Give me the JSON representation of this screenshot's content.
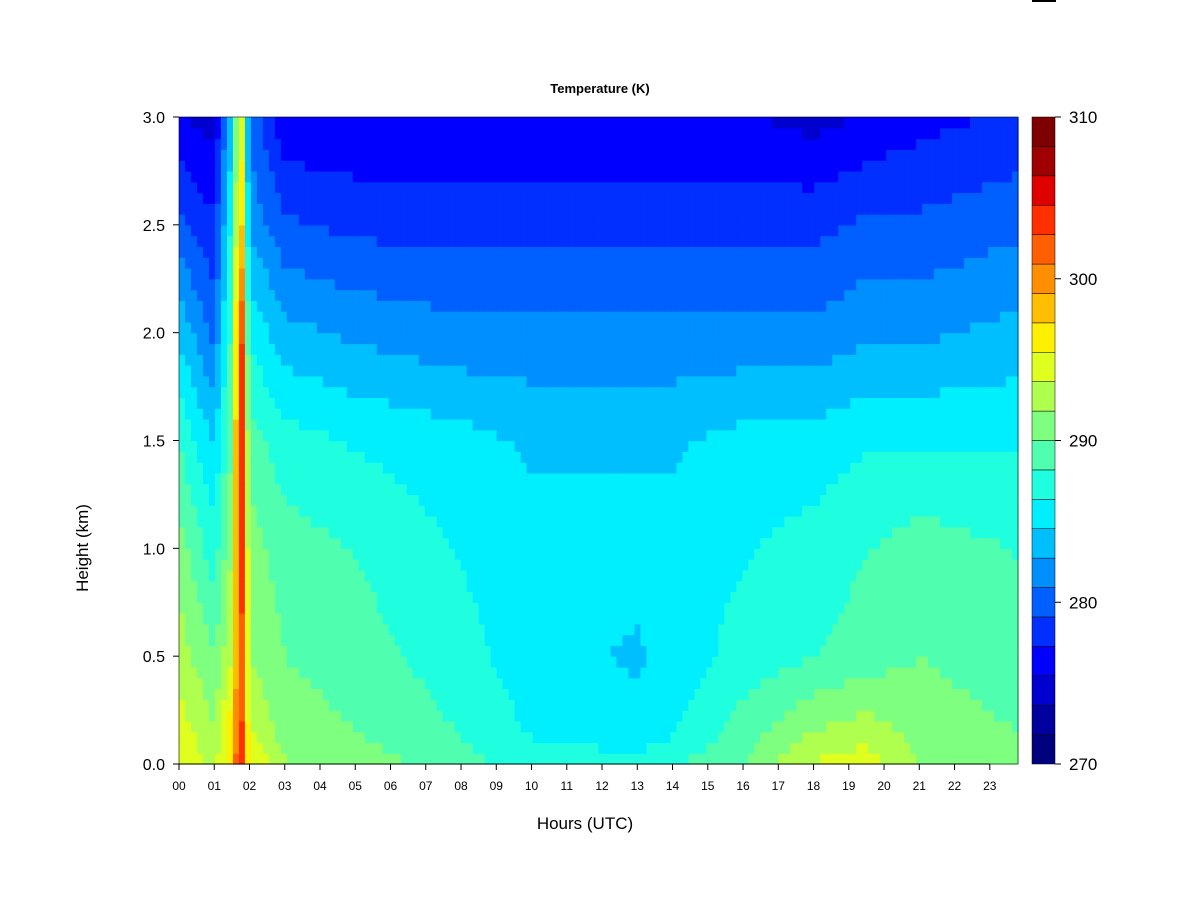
{
  "chart_data": {
    "type": "heatmap",
    "title": "Temperature (K)",
    "xlabel": "Hours (UTC)",
    "ylabel": "Height (km)",
    "x_ticks": [
      "00",
      "01",
      "02",
      "03",
      "04",
      "05",
      "06",
      "07",
      "08",
      "09",
      "10",
      "11",
      "12",
      "13",
      "14",
      "15",
      "16",
      "17",
      "18",
      "19",
      "20",
      "21",
      "22",
      "23"
    ],
    "xlim": [
      0,
      23.8
    ],
    "ylim": [
      0,
      3.0
    ],
    "y_ticks": [
      "0.0",
      "0.5",
      "1.0",
      "1.5",
      "2.0",
      "2.5",
      "3.0"
    ],
    "y_tick_values": [
      0.0,
      0.5,
      1.0,
      1.5,
      2.0,
      2.5,
      3.0
    ],
    "colorbar": {
      "range": [
        270,
        310
      ],
      "levels": 20,
      "tick_labels": [
        "270",
        "280",
        "290",
        "300",
        "310"
      ],
      "tick_values": [
        270,
        280,
        290,
        300,
        310
      ],
      "colors": [
        "#00007f",
        "#00009f",
        "#0000cf",
        "#0000ff",
        "#002fff",
        "#005fff",
        "#008fff",
        "#00bfff",
        "#00efff",
        "#1fffdf",
        "#4fffaf",
        "#7fff7f",
        "#afff4f",
        "#dfff1f",
        "#ffef00",
        "#ffbf00",
        "#ff8f00",
        "#ff5f00",
        "#ff2f00",
        "#df0000",
        "#9f0000",
        "#7f0000"
      ]
    },
    "temperature_profile": {
      "description_levels_km": [
        0.0,
        0.15,
        0.5,
        1.0,
        1.5,
        2.0,
        2.5,
        3.0
      ],
      "hour_columns": [
        0,
        1,
        1.5,
        1.75,
        2,
        3,
        5,
        8,
        10,
        13,
        14,
        16,
        18,
        19.5,
        21,
        23.8
      ],
      "values_K": [
        [
          296,
          293,
          298,
          306,
          296,
          292,
          291,
          289,
          287,
          287,
          288,
          290,
          294,
          295,
          292,
          291
        ],
        [
          295,
          292,
          297,
          305,
          294,
          291,
          290,
          288,
          286,
          285,
          286,
          289,
          292,
          293,
          291,
          290
        ],
        [
          293,
          290,
          294,
          304,
          292,
          290,
          289,
          287,
          285,
          284,
          285,
          287,
          288,
          289,
          290,
          289
        ],
        [
          291,
          287,
          292,
          307,
          291,
          289,
          288,
          286,
          285,
          285,
          285,
          286,
          287,
          288,
          289,
          288
        ],
        [
          288,
          284,
          290,
          307,
          289,
          287,
          286,
          285,
          284,
          284,
          284,
          285,
          285,
          286,
          286,
          286
        ],
        [
          284,
          280,
          289,
          306,
          286,
          283,
          282,
          281,
          281,
          281,
          281,
          281,
          281,
          282,
          282,
          283
        ],
        [
          279,
          277,
          287,
          300,
          282,
          279,
          278,
          278,
          278,
          278,
          278,
          278,
          278,
          279,
          279,
          280
        ],
        [
          275,
          274,
          284,
          297,
          280,
          275,
          275,
          275,
          275,
          275,
          275,
          275,
          274,
          275,
          276,
          277
        ]
      ]
    }
  }
}
